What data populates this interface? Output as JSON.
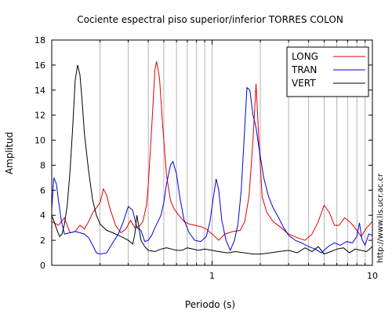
{
  "chart_data": {
    "type": "line",
    "title": "Cociente espectral piso superior/inferior  TORRES COLON",
    "xlabel": "Periodo (s)",
    "ylabel": "Amplitud",
    "x_scale": "log",
    "xlim": [
      0.1,
      10
    ],
    "ylim": [
      0,
      18
    ],
    "x_tick_labels": [
      "1",
      "10"
    ],
    "y_ticks": [
      0,
      2,
      4,
      6,
      8,
      10,
      12,
      14,
      16,
      18
    ],
    "grid": "vertical",
    "legend_position": "top-right",
    "side_text": "http://www.lis.ucr.ac.cr",
    "series": [
      {
        "name": "LONG",
        "color": "#e00000",
        "points": [
          [
            0.1,
            3.5
          ],
          [
            0.11,
            3.2
          ],
          [
            0.12,
            3.8
          ],
          [
            0.13,
            2.6
          ],
          [
            0.14,
            2.7
          ],
          [
            0.15,
            3.2
          ],
          [
            0.16,
            2.9
          ],
          [
            0.17,
            3.5
          ],
          [
            0.18,
            4.2
          ],
          [
            0.19,
            4.6
          ],
          [
            0.2,
            5.0
          ],
          [
            0.21,
            6.1
          ],
          [
            0.22,
            5.6
          ],
          [
            0.23,
            4.6
          ],
          [
            0.25,
            3.2
          ],
          [
            0.27,
            2.6
          ],
          [
            0.29,
            2.9
          ],
          [
            0.31,
            3.6
          ],
          [
            0.33,
            3.0
          ],
          [
            0.35,
            3.1
          ],
          [
            0.37,
            3.5
          ],
          [
            0.39,
            4.8
          ],
          [
            0.4,
            6.4
          ],
          [
            0.42,
            11.0
          ],
          [
            0.44,
            15.6
          ],
          [
            0.45,
            16.3
          ],
          [
            0.47,
            15.0
          ],
          [
            0.49,
            11.5
          ],
          [
            0.52,
            7.2
          ],
          [
            0.55,
            5.2
          ],
          [
            0.58,
            4.5
          ],
          [
            0.62,
            4.0
          ],
          [
            0.67,
            3.5
          ],
          [
            0.72,
            3.3
          ],
          [
            0.78,
            3.2
          ],
          [
            0.85,
            3.1
          ],
          [
            0.92,
            2.9
          ],
          [
            1.0,
            2.5
          ],
          [
            1.1,
            2.0
          ],
          [
            1.2,
            2.5
          ],
          [
            1.35,
            2.7
          ],
          [
            1.5,
            2.8
          ],
          [
            1.6,
            3.5
          ],
          [
            1.7,
            5.5
          ],
          [
            1.8,
            10.0
          ],
          [
            1.88,
            14.5
          ],
          [
            1.95,
            10.5
          ],
          [
            2.05,
            5.5
          ],
          [
            2.2,
            4.2
          ],
          [
            2.4,
            3.5
          ],
          [
            2.7,
            3.0
          ],
          [
            3.0,
            2.5
          ],
          [
            3.4,
            2.2
          ],
          [
            3.8,
            2.0
          ],
          [
            4.2,
            2.5
          ],
          [
            4.6,
            3.5
          ],
          [
            5.0,
            4.8
          ],
          [
            5.4,
            4.2
          ],
          [
            5.8,
            3.2
          ],
          [
            6.2,
            3.2
          ],
          [
            6.7,
            3.8
          ],
          [
            7.2,
            3.5
          ],
          [
            7.8,
            3.0
          ],
          [
            8.5,
            2.3
          ],
          [
            9.2,
            3.0
          ],
          [
            10.0,
            3.5
          ]
        ]
      },
      {
        "name": "TRAN",
        "color": "#0000e0",
        "points": [
          [
            0.1,
            4.5
          ],
          [
            0.103,
            7.0
          ],
          [
            0.107,
            6.5
          ],
          [
            0.11,
            5.2
          ],
          [
            0.115,
            3.5
          ],
          [
            0.12,
            2.5
          ],
          [
            0.13,
            2.6
          ],
          [
            0.14,
            2.7
          ],
          [
            0.15,
            2.6
          ],
          [
            0.16,
            2.5
          ],
          [
            0.17,
            2.2
          ],
          [
            0.18,
            1.6
          ],
          [
            0.19,
            1.0
          ],
          [
            0.2,
            0.9
          ],
          [
            0.22,
            1.0
          ],
          [
            0.24,
            1.8
          ],
          [
            0.26,
            2.5
          ],
          [
            0.28,
            3.5
          ],
          [
            0.3,
            4.7
          ],
          [
            0.32,
            4.4
          ],
          [
            0.34,
            3.0
          ],
          [
            0.36,
            2.8
          ],
          [
            0.38,
            1.9
          ],
          [
            0.4,
            2.0
          ],
          [
            0.42,
            2.4
          ],
          [
            0.44,
            3.0
          ],
          [
            0.46,
            3.5
          ],
          [
            0.48,
            4.0
          ],
          [
            0.5,
            5.0
          ],
          [
            0.52,
            6.5
          ],
          [
            0.55,
            8.0
          ],
          [
            0.57,
            8.3
          ],
          [
            0.6,
            7.3
          ],
          [
            0.63,
            5.4
          ],
          [
            0.67,
            3.6
          ],
          [
            0.72,
            2.6
          ],
          [
            0.78,
            2.0
          ],
          [
            0.85,
            1.9
          ],
          [
            0.92,
            2.3
          ],
          [
            0.97,
            3.5
          ],
          [
            1.02,
            5.5
          ],
          [
            1.06,
            6.9
          ],
          [
            1.1,
            6.0
          ],
          [
            1.15,
            3.6
          ],
          [
            1.22,
            2.0
          ],
          [
            1.3,
            1.2
          ],
          [
            1.38,
            2.0
          ],
          [
            1.45,
            3.3
          ],
          [
            1.52,
            6.0
          ],
          [
            1.58,
            9.8
          ],
          [
            1.65,
            14.2
          ],
          [
            1.72,
            14.0
          ],
          [
            1.8,
            12.0
          ],
          [
            1.88,
            11.0
          ],
          [
            1.98,
            9.0
          ],
          [
            2.1,
            7.0
          ],
          [
            2.25,
            5.5
          ],
          [
            2.4,
            4.6
          ],
          [
            2.6,
            3.8
          ],
          [
            2.8,
            3.0
          ],
          [
            3.0,
            2.4
          ],
          [
            3.3,
            2.0
          ],
          [
            3.6,
            1.8
          ],
          [
            4.0,
            1.5
          ],
          [
            4.4,
            1.3
          ],
          [
            4.8,
            1.0
          ],
          [
            5.3,
            1.5
          ],
          [
            5.8,
            1.8
          ],
          [
            6.3,
            1.6
          ],
          [
            6.9,
            1.9
          ],
          [
            7.5,
            1.8
          ],
          [
            8.0,
            2.3
          ],
          [
            8.3,
            3.4
          ],
          [
            8.6,
            2.1
          ],
          [
            9.0,
            1.6
          ],
          [
            9.5,
            2.5
          ],
          [
            10.0,
            2.4
          ]
        ]
      },
      {
        "name": "VERT",
        "color": "#000000",
        "points": [
          [
            0.1,
            4.0
          ],
          [
            0.104,
            3.4
          ],
          [
            0.108,
            2.8
          ],
          [
            0.112,
            2.3
          ],
          [
            0.116,
            2.5
          ],
          [
            0.12,
            3.3
          ],
          [
            0.125,
            4.8
          ],
          [
            0.13,
            7.5
          ],
          [
            0.135,
            11.0
          ],
          [
            0.14,
            14.8
          ],
          [
            0.145,
            16.0
          ],
          [
            0.15,
            15.2
          ],
          [
            0.155,
            13.0
          ],
          [
            0.16,
            10.5
          ],
          [
            0.17,
            7.5
          ],
          [
            0.18,
            5.2
          ],
          [
            0.19,
            4.0
          ],
          [
            0.2,
            3.3
          ],
          [
            0.22,
            2.8
          ],
          [
            0.24,
            2.6
          ],
          [
            0.26,
            2.4
          ],
          [
            0.28,
            2.2
          ],
          [
            0.3,
            2.0
          ],
          [
            0.32,
            1.7
          ],
          [
            0.33,
            2.5
          ],
          [
            0.34,
            4.0
          ],
          [
            0.35,
            3.0
          ],
          [
            0.36,
            2.0
          ],
          [
            0.38,
            1.5
          ],
          [
            0.4,
            1.2
          ],
          [
            0.44,
            1.1
          ],
          [
            0.48,
            1.3
          ],
          [
            0.52,
            1.4
          ],
          [
            0.56,
            1.3
          ],
          [
            0.6,
            1.2
          ],
          [
            0.65,
            1.2
          ],
          [
            0.7,
            1.4
          ],
          [
            0.76,
            1.3
          ],
          [
            0.82,
            1.2
          ],
          [
            0.9,
            1.3
          ],
          [
            1.0,
            1.2
          ],
          [
            1.1,
            1.1
          ],
          [
            1.25,
            1.0
          ],
          [
            1.4,
            1.1
          ],
          [
            1.6,
            1.0
          ],
          [
            1.8,
            0.9
          ],
          [
            2.0,
            0.9
          ],
          [
            2.3,
            1.0
          ],
          [
            2.6,
            1.1
          ],
          [
            3.0,
            1.2
          ],
          [
            3.4,
            1.0
          ],
          [
            3.8,
            1.4
          ],
          [
            4.2,
            1.1
          ],
          [
            4.6,
            1.5
          ],
          [
            5.0,
            0.9
          ],
          [
            5.5,
            1.1
          ],
          [
            6.0,
            1.3
          ],
          [
            6.6,
            1.4
          ],
          [
            7.2,
            1.0
          ],
          [
            7.8,
            1.3
          ],
          [
            8.5,
            1.2
          ],
          [
            9.2,
            1.1
          ],
          [
            10.0,
            1.5
          ]
        ]
      }
    ]
  }
}
